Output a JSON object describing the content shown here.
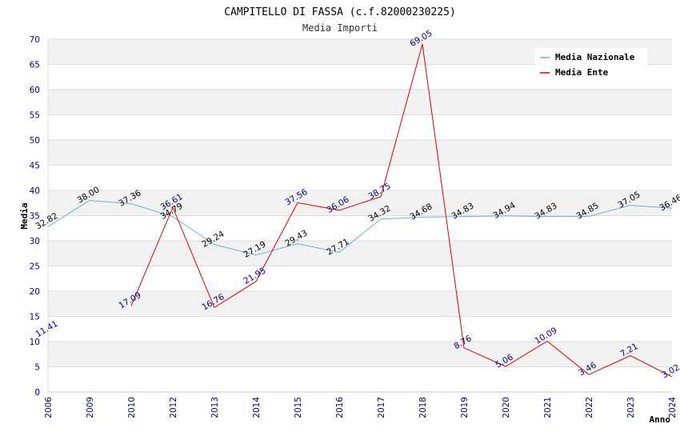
{
  "chart_data": {
    "type": "line",
    "title": "CAMPITELLO DI FASSA (c.f.82000230225)",
    "subtitle": "Media Importi",
    "xlabel": "Anno",
    "ylabel": "Media",
    "ylim": [
      0,
      70
    ],
    "y_ticks": [
      "0",
      "5",
      "10",
      "15",
      "20",
      "25",
      "30",
      "35",
      "40",
      "45",
      "50",
      "55",
      "60",
      "65",
      "70"
    ],
    "categories": [
      "2006",
      "2009",
      "2010",
      "2012",
      "2013",
      "2014",
      "2015",
      "2016",
      "2017",
      "2018",
      "2019",
      "2020",
      "2021",
      "2022",
      "2023",
      "2024"
    ],
    "grid": "horizontal alternating bands",
    "legend_position": "top-right",
    "series": [
      {
        "name": "Media Nazionale",
        "color": "#6aaee0",
        "label_color": "#000000",
        "values": [
          32.82,
          38.0,
          37.36,
          34.79,
          29.24,
          27.19,
          29.43,
          27.71,
          34.32,
          34.68,
          34.83,
          34.94,
          34.83,
          34.85,
          37.05,
          36.46
        ],
        "labels": [
          "32.82",
          "38.00",
          "37.36",
          "34.79",
          "29.24",
          "27.19",
          "29.43",
          "27.71",
          "34.32",
          "34.68",
          "34.83",
          "34.94",
          "34.83",
          "34.85",
          "37.05",
          "36.46"
        ]
      },
      {
        "name": "Media Ente",
        "color": "#e00000",
        "label_color": "#00008b",
        "values": [
          11.41,
          null,
          17.09,
          36.61,
          16.76,
          21.95,
          37.56,
          36.06,
          38.75,
          69.05,
          8.76,
          5.06,
          10.09,
          3.46,
          7.21,
          3.02
        ],
        "labels": [
          "11.41",
          "",
          "17.09",
          "36.61",
          "16.76",
          "21.95",
          "37.56",
          "36.06",
          "38.75",
          "69.05",
          "8.76",
          "5.06",
          "10.09",
          "3.46",
          "7.21",
          "3.02"
        ]
      }
    ]
  }
}
